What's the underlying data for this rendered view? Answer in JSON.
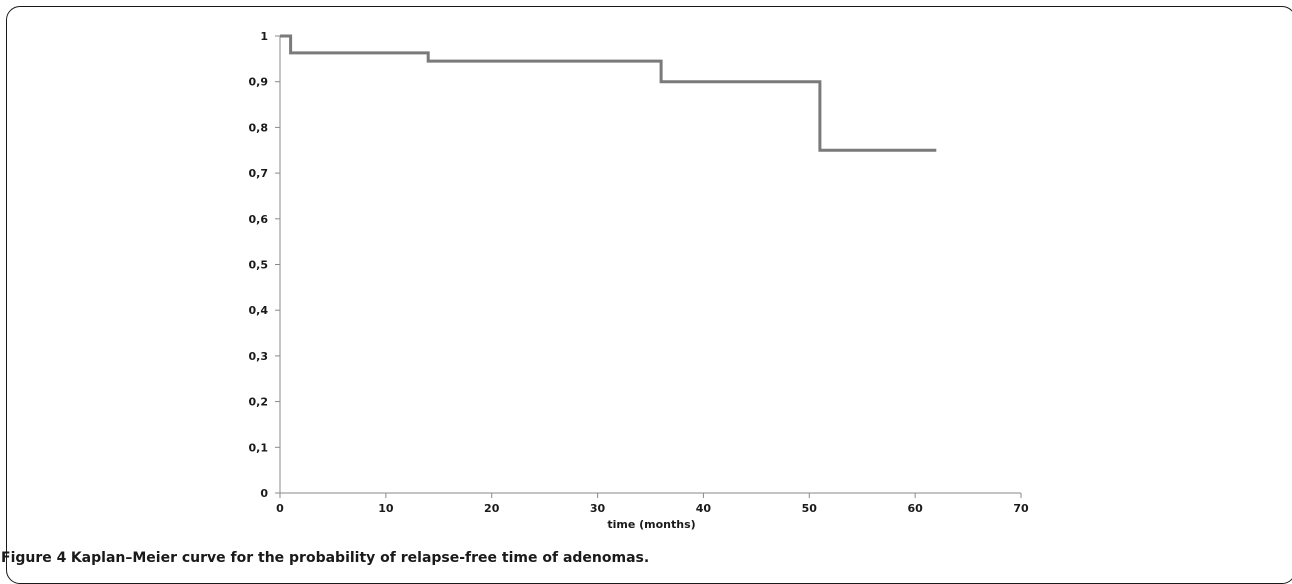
{
  "figure": {
    "label": "Figure 4",
    "caption": "Kaplan–Meier curve for the probability of relapse-free time of adenomas."
  },
  "chart_data": {
    "type": "line",
    "step": true,
    "title": "",
    "xlabel": "time (months)",
    "ylabel": "",
    "xlim": [
      0,
      70
    ],
    "ylim": [
      0,
      1
    ],
    "x_ticks": [
      0,
      10,
      20,
      30,
      40,
      50,
      60,
      70
    ],
    "x_tick_labels": [
      "0",
      "10",
      "20",
      "30",
      "40",
      "50",
      "60",
      "70"
    ],
    "y_ticks": [
      0,
      0.1,
      0.2,
      0.3,
      0.4,
      0.5,
      0.6,
      0.7,
      0.8,
      0.9,
      1
    ],
    "y_tick_labels": [
      "0",
      "0,1",
      "0,2",
      "0,3",
      "0,4",
      "0,5",
      "0,6",
      "0,7",
      "0,8",
      "0,9",
      "1"
    ],
    "grid": false,
    "legend": "none",
    "series": [
      {
        "x": [
          0,
          1,
          1,
          14,
          14,
          36,
          36,
          51,
          51,
          62
        ],
        "y": [
          1,
          1,
          0.963,
          0.963,
          0.945,
          0.945,
          0.9,
          0.9,
          0.75,
          0.75
        ],
        "color": "#7a7a7a"
      }
    ]
  }
}
